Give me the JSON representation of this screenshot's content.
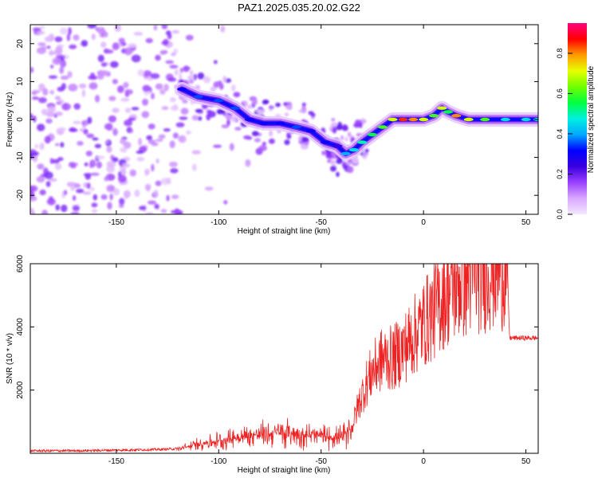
{
  "title": "PAZ1.2025.035.20.02.G22",
  "colors": {
    "snr_line": "#ee2222",
    "colorbar_stops": [
      "#f2e8ff",
      "#d9a8ff",
      "#9a40ff",
      "#3a00e0",
      "#0000ff",
      "#00a8ff",
      "#00f0e0",
      "#00ff40",
      "#70ff00",
      "#e8ff00",
      "#ff9a00",
      "#ff0000",
      "#ff0080"
    ]
  },
  "chart_data": [
    {
      "type": "heatmap",
      "xlabel": "Height of straight line (km)",
      "ylabel": "Frequency (Hz)",
      "xlim": [
        -192,
        56
      ],
      "ylim": [
        -25,
        25
      ],
      "xticks": [
        -150,
        -100,
        -50,
        0,
        50
      ],
      "yticks": [
        -20,
        -10,
        0,
        10,
        20
      ],
      "colorbar": {
        "label": "Normalized spectral amplitude",
        "range": [
          0,
          0.95
        ],
        "ticks": [
          "0.0",
          "0.2",
          "0.4",
          "0.6",
          "0.8"
        ]
      },
      "ridge": [
        {
          "x": -118,
          "y": 8,
          "amp": 0.3
        },
        {
          "x": -110,
          "y": 6,
          "amp": 0.35
        },
        {
          "x": -100,
          "y": 5,
          "amp": 0.35
        },
        {
          "x": -92,
          "y": 3,
          "amp": 0.35
        },
        {
          "x": -85,
          "y": 0,
          "amp": 0.3
        },
        {
          "x": -78,
          "y": -1,
          "amp": 0.3
        },
        {
          "x": -70,
          "y": -1,
          "amp": 0.3
        },
        {
          "x": -62,
          "y": -2,
          "amp": 0.35
        },
        {
          "x": -55,
          "y": -3,
          "amp": 0.3
        },
        {
          "x": -48,
          "y": -6,
          "amp": 0.3
        },
        {
          "x": -42,
          "y": -7,
          "amp": 0.25
        },
        {
          "x": -38,
          "y": -9,
          "amp": 0.4
        },
        {
          "x": -34,
          "y": -8,
          "amp": 0.45
        },
        {
          "x": -30,
          "y": -6,
          "amp": 0.5
        },
        {
          "x": -25,
          "y": -4,
          "amp": 0.55
        },
        {
          "x": -20,
          "y": -2,
          "amp": 0.6
        },
        {
          "x": -15,
          "y": 0,
          "amp": 0.7
        },
        {
          "x": -10,
          "y": 0,
          "amp": 0.85
        },
        {
          "x": -5,
          "y": 0,
          "amp": 0.8
        },
        {
          "x": 0,
          "y": 0,
          "amp": 0.7
        },
        {
          "x": 5,
          "y": 1,
          "amp": 0.6
        },
        {
          "x": 9,
          "y": 3,
          "amp": 0.7
        },
        {
          "x": 12,
          "y": 2,
          "amp": 0.55
        },
        {
          "x": 16,
          "y": 1,
          "amp": 0.8
        },
        {
          "x": 22,
          "y": 0,
          "amp": 0.7
        },
        {
          "x": 30,
          "y": 0,
          "amp": 0.6
        },
        {
          "x": 40,
          "y": 0,
          "amp": 0.45
        },
        {
          "x": 50,
          "y": 0,
          "amp": 0.45
        },
        {
          "x": 56,
          "y": 0,
          "amp": 0.45
        }
      ]
    },
    {
      "type": "line",
      "xlabel": "Height of straight line (km)",
      "ylabel": "SNR (10 * v/v)",
      "xlim": [
        -192,
        56
      ],
      "ylim": [
        0,
        6000
      ],
      "xticks": [
        -150,
        -100,
        -50,
        0,
        50
      ],
      "yticks": [
        2000,
        4000,
        6000
      ],
      "series": [
        {
          "x": [
            -192,
            -170,
            -150,
            -130,
            -118,
            -110,
            -100,
            -90,
            -80,
            -70,
            -60,
            -50,
            -40,
            -35,
            -32,
            -28,
            -25,
            -20,
            -15,
            -10,
            -5,
            0,
            5,
            10,
            15,
            20,
            25,
            30,
            35,
            40,
            41,
            42,
            45,
            50,
            56
          ],
          "values": [
            80,
            80,
            100,
            120,
            150,
            300,
            400,
            500,
            600,
            650,
            600,
            550,
            500,
            800,
            1500,
            2200,
            2600,
            3000,
            3000,
            3300,
            3700,
            4100,
            4500,
            5000,
            5300,
            5500,
            5700,
            5800,
            5900,
            5900,
            5850,
            3650,
            3650,
            3650,
            3650
          ]
        }
      ]
    }
  ]
}
